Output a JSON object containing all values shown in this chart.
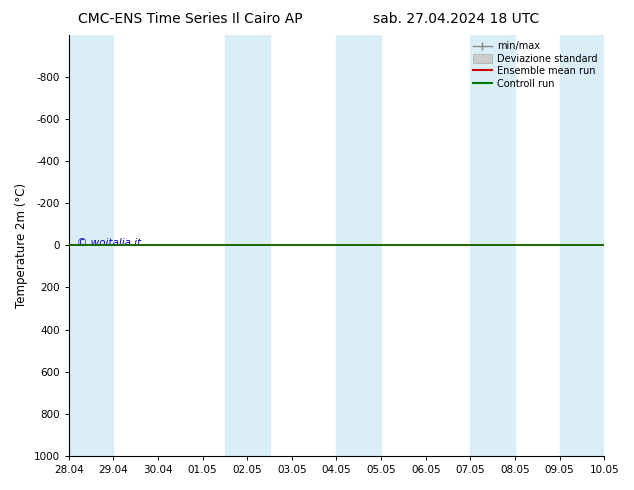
{
  "title_left": "CMC-ENS Time Series Il Cairo AP",
  "title_right": "sab. 27.04.2024 18 UTC",
  "ylabel": "Temperature 2m (°C)",
  "ylim_top": -1000,
  "ylim_bottom": 1000,
  "yticks": [
    -800,
    -600,
    -400,
    -200,
    0,
    200,
    400,
    600,
    800,
    1000
  ],
  "xtick_labels": [
    "28.04",
    "29.04",
    "30.04",
    "01.05",
    "02.05",
    "03.05",
    "04.05",
    "05.05",
    "06.05",
    "07.05",
    "08.05",
    "09.05",
    "10.05"
  ],
  "xmin": 0,
  "xmax": 12,
  "green_line_y": 0,
  "red_line_y": 0,
  "shaded_bands": [
    [
      0.0,
      1.0
    ],
    [
      3.5,
      4.5
    ],
    [
      6.0,
      7.0
    ],
    [
      9.0,
      10.0
    ],
    [
      11.0,
      12.0
    ]
  ],
  "band_color": "#daeef7",
  "bg_color": "#ffffff",
  "green_color": "#007700",
  "red_color": "#cc0000",
  "watermark_text": "© woitalia.it",
  "watermark_color": "#0000bb",
  "legend_items": [
    "min/max",
    "Deviazione standard",
    "Ensemble mean run",
    "Controll run"
  ],
  "title_fontsize": 10,
  "tick_fontsize": 7.5,
  "ylabel_fontsize": 8.5
}
